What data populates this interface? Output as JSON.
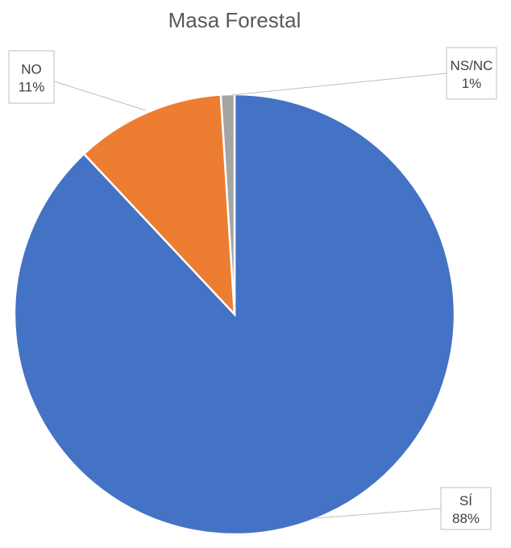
{
  "chart_data": {
    "type": "pie",
    "title": "Masa Forestal",
    "categories": [
      "SÍ",
      "NO",
      "NS/NC"
    ],
    "values": [
      88,
      11,
      1
    ],
    "value_labels": [
      "88%",
      "11%",
      "1%"
    ],
    "colors": [
      "#4472C4",
      "#ED7D31",
      "#A5A5A5"
    ],
    "start_angle_deg": 0,
    "direction": "clockwise",
    "legend": "none",
    "data_labels": "callout boxes outside slices"
  }
}
